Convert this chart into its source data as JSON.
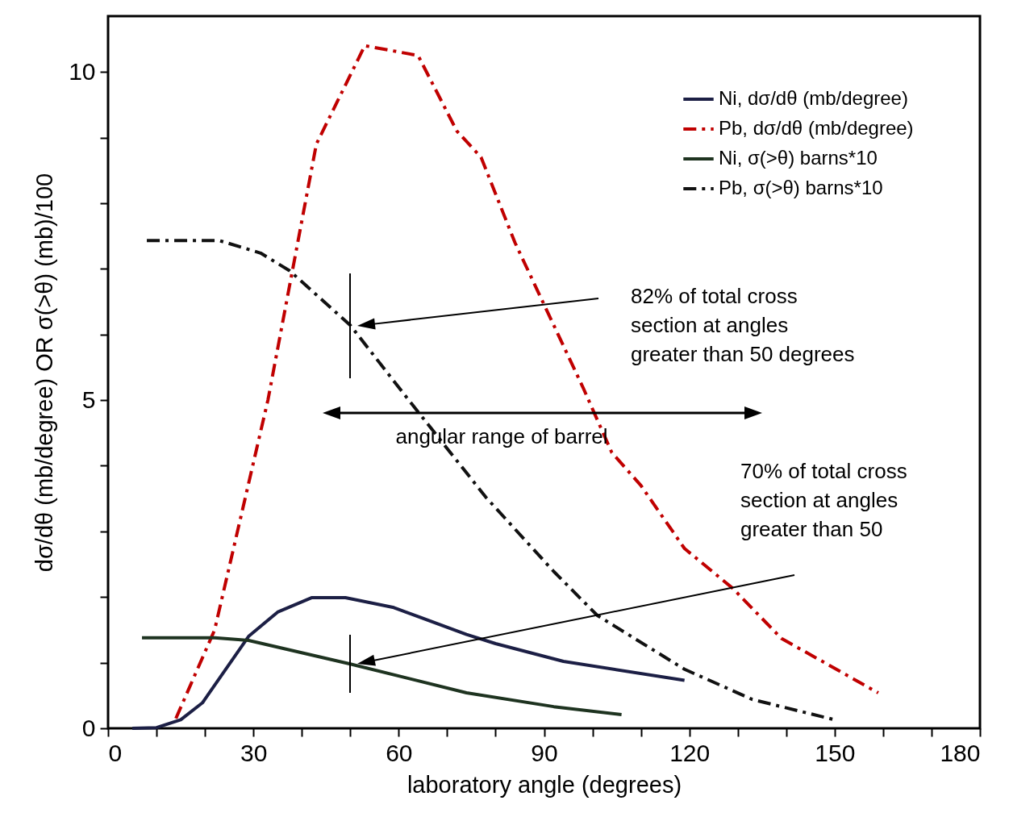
{
  "chart_data": {
    "type": "line",
    "xlabel": "laboratory angle (degrees)",
    "ylabel": "dσ/dθ (mb/degree) OR σ(>θ) (mb)/100",
    "xlim": [
      0,
      180
    ],
    "ylim": [
      0,
      10.85
    ],
    "xticks": [
      0,
      {
        "value": 10,
        "label": null
      },
      {
        "value": 20,
        "label": null
      },
      30,
      {
        "value": 40,
        "label": null
      },
      {
        "value": 50,
        "label": null
      },
      60,
      {
        "value": 70,
        "label": null
      },
      {
        "value": 80,
        "label": null
      },
      90,
      {
        "value": 100,
        "label": null
      },
      {
        "value": 110,
        "label": null
      },
      120,
      {
        "value": 130,
        "label": null
      },
      {
        "value": 140,
        "label": null
      },
      150,
      {
        "value": 160,
        "label": null
      },
      {
        "value": 170,
        "label": null
      },
      180
    ],
    "yticks": [
      0,
      {
        "value": 1,
        "label": null
      },
      {
        "value": 2,
        "label": null
      },
      {
        "value": 3,
        "label": null
      },
      {
        "value": 4,
        "label": null
      },
      5,
      {
        "value": 6,
        "label": null
      },
      {
        "value": 7,
        "label": null
      },
      {
        "value": 8,
        "label": null
      },
      {
        "value": 9,
        "label": null
      },
      10
    ],
    "grid": false,
    "legend": "top right",
    "marker": "none",
    "series": [
      {
        "name": "Ni, dσ/dθ (mb/degree)",
        "color": "#1c1f45",
        "line_style": "solid",
        "x": [
          5,
          10,
          15,
          19.5,
          29,
          35,
          42,
          49,
          59,
          74,
          80,
          94,
          119
        ],
        "values": [
          0,
          0.01,
          0.13,
          0.39,
          1.4,
          1.77,
          1.99,
          1.99,
          1.84,
          1.43,
          1.29,
          1.02,
          0.73
        ]
      },
      {
        "name": "Pb, dσ/dθ (mb/degree)",
        "color": "#c00000",
        "line_style": "dashed",
        "x": [
          14,
          22,
          33,
          43,
          53,
          64,
          72,
          77,
          84,
          91,
          98,
          104,
          110,
          119,
          129,
          139,
          159
        ],
        "values": [
          0.15,
          1.5,
          5,
          8.9,
          10.4,
          10.25,
          9.1,
          8.7,
          7.4,
          6.3,
          5.2,
          4.2,
          3.7,
          2.74,
          2.13,
          1.37,
          0.54
        ]
      },
      {
        "name": "Ni, σ(>θ)  barns*10",
        "color": "#1e3320",
        "line_style": "solid",
        "x": [
          7,
          22,
          29,
          50,
          74,
          92,
          106
        ],
        "values": [
          1.38,
          1.38,
          1.34,
          0.98,
          0.54,
          0.33,
          0.21
        ]
      },
      {
        "name": "Pb, σ(>θ)  barns*10",
        "color": "#111111",
        "line_style": "dashed",
        "x": [
          8,
          23,
          31.5,
          37.5,
          50,
          62.5,
          78,
          92,
          101,
          119,
          133,
          150
        ],
        "values": [
          7.43,
          7.43,
          7.24,
          6.97,
          6.14,
          4.96,
          3.52,
          2.39,
          1.72,
          0.9,
          0.44,
          0.13
        ]
      }
    ],
    "annotations": [
      "82% of total cross section at angles greater than 50 degrees",
      "70% of total cross section at angles greater than 50",
      "angular range of barrel"
    ]
  }
}
